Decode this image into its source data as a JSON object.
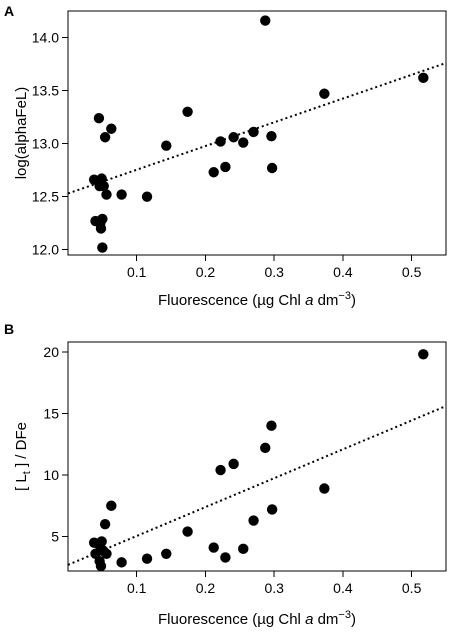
{
  "chart_data": [
    {
      "panel_label": "A",
      "type": "scatter",
      "xlabel": "Fluorescence (µg Chl a dm⁻³)",
      "xlabel_parts": {
        "pre": "Fluorescence (µg Chl ",
        "italic": "a",
        "post": " dm",
        "sup": "−3",
        "close": ")"
      },
      "ylabel": "log(alphaFeL)",
      "xlim": [
        0.0,
        0.55
      ],
      "ylim": [
        11.95,
        14.25
      ],
      "xticks": [
        0.1,
        0.2,
        0.3,
        0.4,
        0.5
      ],
      "xtick_labels": [
        "0.1",
        "0.2",
        "0.3",
        "0.4",
        "0.5"
      ],
      "yticks": [
        12.0,
        12.5,
        13.0,
        13.5,
        14.0
      ],
      "ytick_labels": [
        "12.0",
        "12.5",
        "13.0",
        "13.5",
        "14.0"
      ],
      "trendline": {
        "style": "dotted",
        "x": [
          0.0,
          0.55
        ],
        "y": [
          12.53,
          13.76
        ]
      },
      "points": [
        {
          "x": 0.038,
          "y": 12.66
        },
        {
          "x": 0.04,
          "y": 12.27
        },
        {
          "x": 0.045,
          "y": 13.24
        },
        {
          "x": 0.046,
          "y": 12.6
        },
        {
          "x": 0.047,
          "y": 12.25
        },
        {
          "x": 0.048,
          "y": 12.2
        },
        {
          "x": 0.049,
          "y": 12.67
        },
        {
          "x": 0.05,
          "y": 12.29
        },
        {
          "x": 0.05,
          "y": 12.02
        },
        {
          "x": 0.052,
          "y": 12.6
        },
        {
          "x": 0.054,
          "y": 13.06
        },
        {
          "x": 0.056,
          "y": 12.52
        },
        {
          "x": 0.063,
          "y": 13.14
        },
        {
          "x": 0.078,
          "y": 12.52
        },
        {
          "x": 0.115,
          "y": 12.5
        },
        {
          "x": 0.143,
          "y": 12.98
        },
        {
          "x": 0.174,
          "y": 13.3
        },
        {
          "x": 0.212,
          "y": 12.73
        },
        {
          "x": 0.222,
          "y": 13.02
        },
        {
          "x": 0.229,
          "y": 12.78
        },
        {
          "x": 0.241,
          "y": 13.06
        },
        {
          "x": 0.255,
          "y": 13.01
        },
        {
          "x": 0.27,
          "y": 13.11
        },
        {
          "x": 0.287,
          "y": 14.16
        },
        {
          "x": 0.296,
          "y": 13.07
        },
        {
          "x": 0.297,
          "y": 12.77
        },
        {
          "x": 0.373,
          "y": 13.47
        },
        {
          "x": 0.517,
          "y": 13.62
        }
      ]
    },
    {
      "panel_label": "B",
      "type": "scatter",
      "xlabel": "Fluorescence (µg Chl a dm⁻³)",
      "xlabel_parts": {
        "pre": "Fluorescence (µg Chl ",
        "italic": "a",
        "post": " dm",
        "sup": "−3",
        "close": ")"
      },
      "ylabel": "[ Lt ] / DFe",
      "ylabel_parts": {
        "pre": "[ L",
        "sub": "t",
        "post": " ] / DFe"
      },
      "xlim": [
        0.0,
        0.55
      ],
      "ylim": [
        2.2,
        20.8
      ],
      "xticks": [
        0.1,
        0.2,
        0.3,
        0.4,
        0.5
      ],
      "xtick_labels": [
        "0.1",
        "0.2",
        "0.3",
        "0.4",
        "0.5"
      ],
      "yticks": [
        5,
        10,
        15,
        20
      ],
      "ytick_labels": [
        "5",
        "10",
        "15",
        "20"
      ],
      "trendline": {
        "style": "dotted",
        "x": [
          0.0,
          0.55
        ],
        "y": [
          2.7,
          15.6
        ]
      },
      "points": [
        {
          "x": 0.038,
          "y": 4.5
        },
        {
          "x": 0.04,
          "y": 3.6
        },
        {
          "x": 0.044,
          "y": 4.4
        },
        {
          "x": 0.046,
          "y": 3.0
        },
        {
          "x": 0.048,
          "y": 2.6
        },
        {
          "x": 0.049,
          "y": 4.6
        },
        {
          "x": 0.05,
          "y": 3.9
        },
        {
          "x": 0.052,
          "y": 3.8
        },
        {
          "x": 0.054,
          "y": 6.0
        },
        {
          "x": 0.056,
          "y": 3.6
        },
        {
          "x": 0.063,
          "y": 7.5
        },
        {
          "x": 0.078,
          "y": 2.9
        },
        {
          "x": 0.115,
          "y": 3.2
        },
        {
          "x": 0.143,
          "y": 3.6
        },
        {
          "x": 0.174,
          "y": 5.4
        },
        {
          "x": 0.212,
          "y": 4.1
        },
        {
          "x": 0.222,
          "y": 10.4
        },
        {
          "x": 0.229,
          "y": 3.3
        },
        {
          "x": 0.241,
          "y": 10.9
        },
        {
          "x": 0.255,
          "y": 4.0
        },
        {
          "x": 0.27,
          "y": 6.3
        },
        {
          "x": 0.287,
          "y": 12.2
        },
        {
          "x": 0.296,
          "y": 14.0
        },
        {
          "x": 0.297,
          "y": 7.2
        },
        {
          "x": 0.373,
          "y": 8.9
        },
        {
          "x": 0.517,
          "y": 19.8
        }
      ]
    }
  ]
}
